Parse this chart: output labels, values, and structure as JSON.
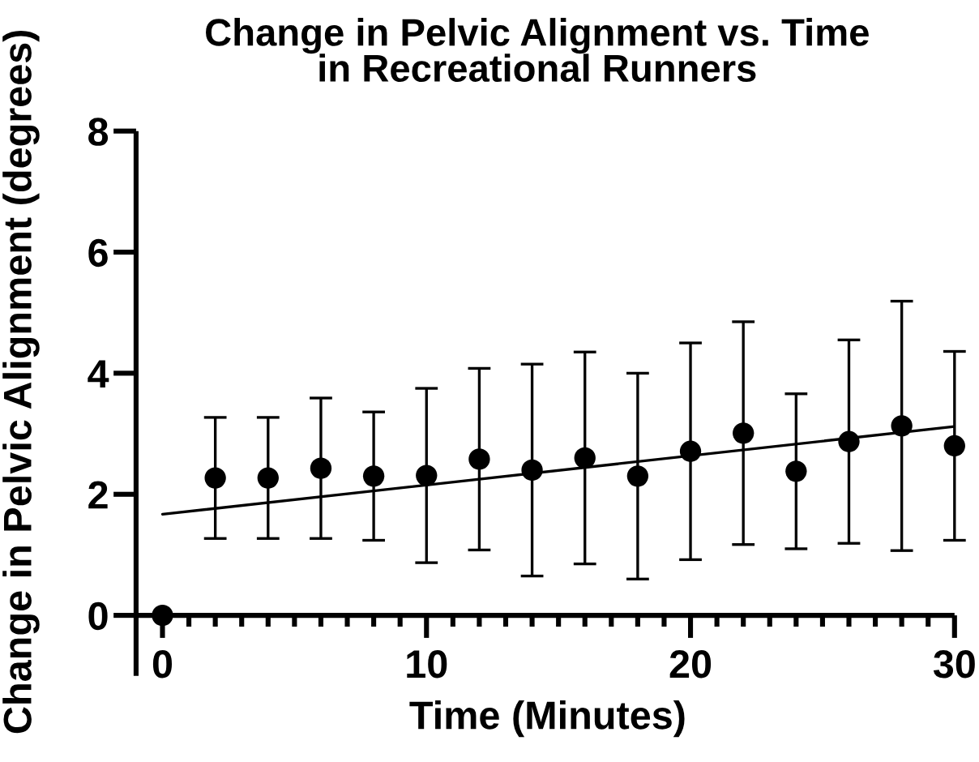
{
  "chart_data": {
    "type": "scatter",
    "title": "Change in Pelvic Alignment vs. Time\nin Recreational Runners",
    "xlabel": "Time (Minutes)",
    "ylabel": "Change in Pelvic Alignment (degrees)",
    "series": [
      {
        "color": "#000000",
        "marker": "circle",
        "x": [
          0,
          2,
          4,
          6,
          8,
          10,
          12,
          14,
          16,
          18,
          20,
          22,
          24,
          26,
          28,
          30
        ],
        "values": [
          0,
          2.27,
          2.27,
          2.43,
          2.3,
          2.31,
          2.58,
          2.4,
          2.6,
          2.3,
          2.71,
          3.01,
          2.38,
          2.87,
          3.13,
          2.8
        ],
        "errors": [
          null,
          1.0,
          1.0,
          1.16,
          1.06,
          1.44,
          1.5,
          1.75,
          1.75,
          1.7,
          1.79,
          1.84,
          1.28,
          1.68,
          2.06,
          1.56
        ]
      },
      {
        "type": "line",
        "color": "#000000",
        "x": [
          0,
          30
        ],
        "values": [
          1.67,
          3.12
        ]
      }
    ],
    "xlim": [
      -1,
      30
    ],
    "xticks": [
      0,
      {
        "value": 1,
        "label": null
      },
      {
        "value": 2,
        "label": null
      },
      {
        "value": 3,
        "label": null
      },
      {
        "value": 4,
        "label": null
      },
      {
        "value": 5,
        "label": null
      },
      {
        "value": 6,
        "label": null
      },
      {
        "value": 7,
        "label": null
      },
      {
        "value": 8,
        "label": null
      },
      {
        "value": 9,
        "label": null
      },
      10,
      {
        "value": 11,
        "label": null
      },
      {
        "value": 12,
        "label": null
      },
      {
        "value": 13,
        "label": null
      },
      {
        "value": 14,
        "label": null
      },
      {
        "value": 15,
        "label": null
      },
      {
        "value": 16,
        "label": null
      },
      {
        "value": 17,
        "label": null
      },
      {
        "value": 18,
        "label": null
      },
      {
        "value": 19,
        "label": null
      },
      20,
      {
        "value": 21,
        "label": null
      },
      {
        "value": 22,
        "label": null
      },
      {
        "value": 23,
        "label": null
      },
      {
        "value": 24,
        "label": null
      },
      {
        "value": 25,
        "label": null
      },
      {
        "value": 26,
        "label": null
      },
      {
        "value": 27,
        "label": null
      },
      {
        "value": 28,
        "label": null
      },
      {
        "value": 29,
        "label": null
      },
      30
    ],
    "ylim": [
      -1,
      8
    ],
    "yticks": [
      0,
      2,
      4,
      6,
      8
    ]
  }
}
